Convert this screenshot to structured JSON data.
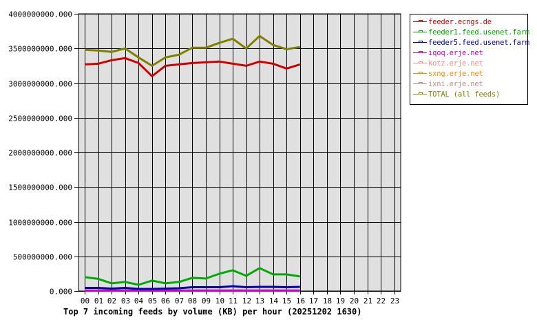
{
  "chart_data": {
    "type": "line",
    "title": "Top 7 incoming feeds by volume (KB) per hour (20251202 1630)",
    "xlabel": "",
    "ylabel": "",
    "ylim": [
      0,
      4000000000
    ],
    "grid": true,
    "legend_position": "right",
    "x": [
      "00",
      "01",
      "02",
      "03",
      "04",
      "05",
      "06",
      "07",
      "08",
      "09",
      "10",
      "11",
      "12",
      "13",
      "14",
      "15",
      "16",
      "17",
      "18",
      "19",
      "20",
      "21",
      "22",
      "23"
    ],
    "y_ticks": [
      "0.000",
      "500000000.000",
      "1000000000.000",
      "1500000000.000",
      "2000000000.000",
      "2500000000.000",
      "3000000000.000",
      "3500000000.000",
      "4000000000.000"
    ],
    "series": [
      {
        "name": "feeder.ecngs.de",
        "color": "#cc0000",
        "values": [
          3270000000,
          3280000000,
          3330000000,
          3360000000,
          3290000000,
          3100000000,
          3250000000,
          3270000000,
          3290000000,
          3300000000,
          3310000000,
          3280000000,
          3250000000,
          3310000000,
          3280000000,
          3210000000,
          3270000000
        ]
      },
      {
        "name": "feeder1.feed.usenet.farm",
        "color": "#00aa00",
        "values": [
          200000000,
          175000000,
          110000000,
          130000000,
          90000000,
          150000000,
          110000000,
          130000000,
          190000000,
          180000000,
          250000000,
          300000000,
          220000000,
          330000000,
          240000000,
          240000000,
          210000000
        ]
      },
      {
        "name": "feeder5.feed.usenet.farm",
        "color": "#0000aa",
        "values": [
          45000000,
          45000000,
          35000000,
          45000000,
          30000000,
          30000000,
          35000000,
          40000000,
          55000000,
          55000000,
          55000000,
          70000000,
          55000000,
          60000000,
          60000000,
          55000000,
          60000000
        ]
      },
      {
        "name": "iqoq.erje.net",
        "color": "#cc00cc",
        "values": [
          5000000,
          5000000,
          5000000,
          5000000,
          5000000,
          5000000,
          5000000,
          5000000,
          5000000,
          5000000,
          5000000,
          5000000,
          5000000,
          5000000,
          5000000,
          5000000,
          5000000
        ]
      },
      {
        "name": "kotz.erje.net",
        "color": "#ff8888",
        "values": [
          5000000,
          5000000,
          5000000,
          5000000,
          5000000,
          5000000,
          5000000,
          5000000,
          5000000,
          5000000,
          5000000,
          5000000,
          5000000,
          5000000,
          5000000,
          5000000,
          5000000
        ]
      },
      {
        "name": "sxng.erje.net",
        "color": "#ff8800",
        "values": [
          5000000,
          5000000,
          5000000,
          5000000,
          5000000,
          5000000,
          5000000,
          5000000,
          5000000,
          5000000,
          5000000,
          5000000,
          5000000,
          5000000,
          5000000,
          5000000,
          5000000
        ]
      },
      {
        "name": "ixni.erje.net",
        "color": "#cc8888",
        "values": [
          10000000,
          10000000,
          10000000,
          10000000,
          10000000,
          10000000,
          10000000,
          10000000,
          10000000,
          10000000,
          10000000,
          10000000,
          10000000,
          10000000,
          10000000,
          10000000,
          10000000
        ]
      },
      {
        "name": "TOTAL (all feeds)",
        "color": "#808000",
        "values": [
          3480000000,
          3470000000,
          3450000000,
          3500000000,
          3370000000,
          3250000000,
          3370000000,
          3410000000,
          3510000000,
          3510000000,
          3580000000,
          3640000000,
          3500000000,
          3680000000,
          3550000000,
          3490000000,
          3520000000
        ]
      }
    ]
  },
  "legend": {
    "items": [
      {
        "label": "feeder.ecngs.de",
        "color": "#cc0000"
      },
      {
        "label": "feeder1.feed.usenet.farm",
        "color": "#00aa00"
      },
      {
        "label": "feeder5.feed.usenet.farm",
        "color": "#0000aa"
      },
      {
        "label": "iqoq.erje.net",
        "color": "#cc00cc"
      },
      {
        "label": "kotz.erje.net",
        "color": "#ff8888"
      },
      {
        "label": "sxng.erje.net",
        "color": "#ff8800"
      },
      {
        "label": "ixni.erje.net",
        "color": "#cc8888"
      },
      {
        "label": "TOTAL (all feeds)",
        "color": "#808000"
      }
    ]
  },
  "colors": {
    "plot_background": "#e0e0e0",
    "grid": "#000000",
    "page_background": "#ffffff"
  }
}
